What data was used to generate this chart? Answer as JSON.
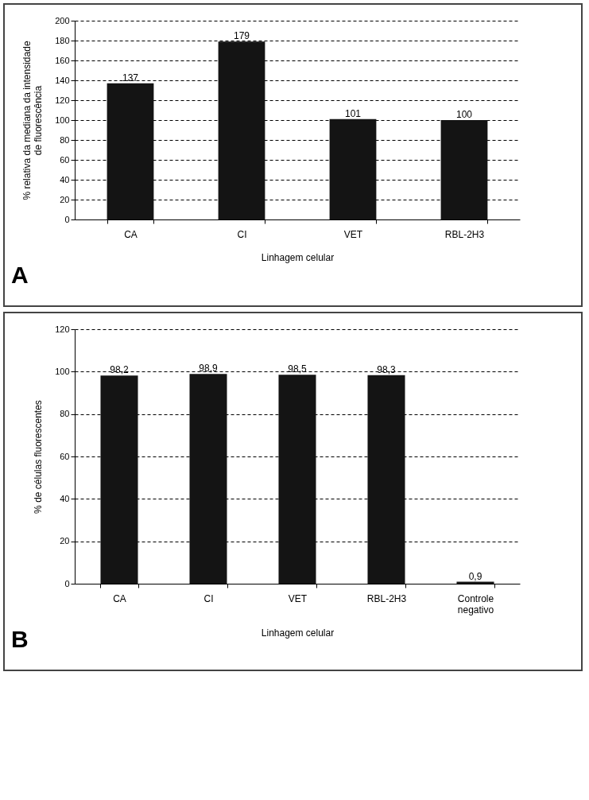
{
  "chart_data": [
    {
      "type": "bar",
      "xlabel": "Linhagem celular",
      "ylabel": "% relativa da mediana da intensidade de fluorescência",
      "categories": [
        "CA",
        "CI",
        "VET",
        "RBL-2H3"
      ],
      "values": [
        137,
        179,
        101,
        100
      ],
      "color": "#141414",
      "ylim": [
        0,
        200
      ],
      "yticks": [
        0,
        20,
        40,
        60,
        80,
        100,
        120,
        140,
        160,
        180,
        200
      ],
      "grid": "y",
      "line_style": "dashed",
      "data_labels": true,
      "annotations": [
        "A"
      ]
    },
    {
      "type": "bar",
      "xlabel": "Linhagem celular",
      "ylabel": "% de células fluorescentes",
      "categories": [
        "CA",
        "CI",
        "VET",
        "RBL-2H3",
        "Controle negativo"
      ],
      "values": [
        98.2,
        98.9,
        98.5,
        98.3,
        0.9
      ],
      "value_labels": [
        "98,2",
        "98,9",
        "98,5",
        "98,3",
        "0,9"
      ],
      "color": "#141414",
      "ylim": [
        0,
        120
      ],
      "yticks": [
        0,
        20,
        40,
        60,
        80,
        100,
        120
      ],
      "grid": "y",
      "line_style": "dashed",
      "annotations": [
        "B"
      ]
    }
  ]
}
